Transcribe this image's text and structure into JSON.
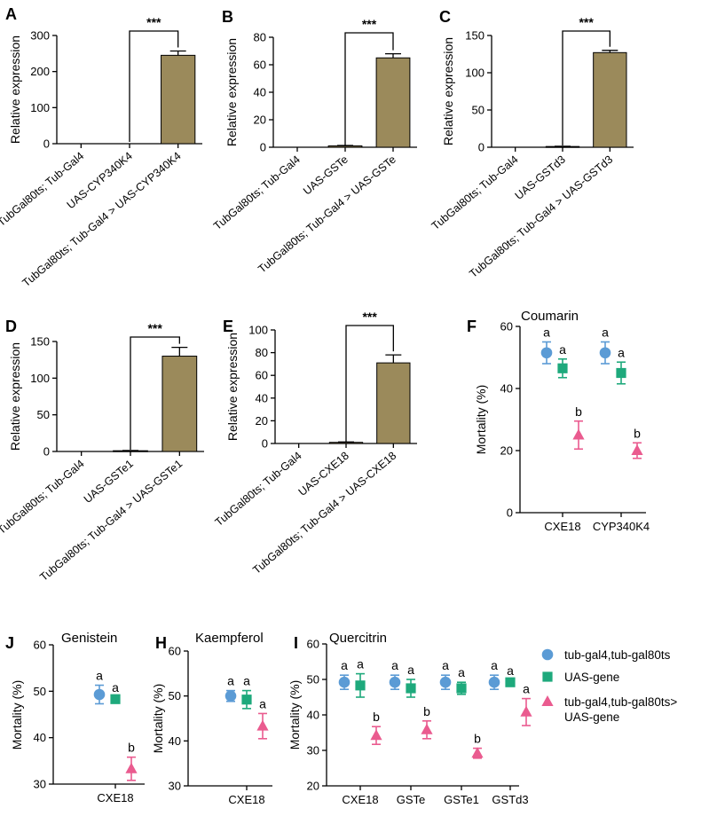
{
  "colors": {
    "bar": "#9b8a5b",
    "blue": "#5b9bd5",
    "green": "#1ea97c",
    "pink": "#ea5b8f"
  },
  "legend": {
    "entries": [
      "tub-gal4,tub-gal80ts",
      "UAS-gene",
      "tub-gal4,tub-gal80ts>",
      "UAS-gene"
    ]
  },
  "chart_data": [
    {
      "id": "A",
      "panel_label": "A",
      "type": "bar",
      "ylabel": "Relative expression",
      "ylim": [
        0,
        300
      ],
      "yticks": [
        0,
        100,
        200,
        300
      ],
      "categories": [
        "TubGal80ts; Tub-Gal4",
        "UAS-CYP340K4",
        "TubGal80ts; Tub-Gal4 > UAS-CYP340K4"
      ],
      "values": [
        0,
        0,
        245
      ],
      "errors": [
        0,
        0,
        12
      ],
      "significance": "***"
    },
    {
      "id": "B",
      "panel_label": "B",
      "type": "bar",
      "ylabel": "Relative expression",
      "ylim": [
        0,
        80
      ],
      "yticks": [
        0,
        20,
        40,
        60,
        80
      ],
      "categories": [
        "TubGal80ts; Tub-Gal4",
        "UAS-GSTe",
        "TubGal80ts; Tub-Gal4 > UAS-GSTe"
      ],
      "values": [
        0,
        1,
        65
      ],
      "errors": [
        0,
        0.3,
        3
      ],
      "significance": "***"
    },
    {
      "id": "C",
      "panel_label": "C",
      "type": "bar",
      "ylabel": "Relative expression",
      "ylim": [
        0,
        150
      ],
      "yticks": [
        0,
        50,
        100,
        150
      ],
      "categories": [
        "TubGal80ts; Tub-Gal4",
        "UAS-GSTd3",
        "TubGal80ts; Tub-Gal4 > UAS-GSTd3"
      ],
      "values": [
        0,
        1,
        127
      ],
      "errors": [
        0,
        0.3,
        3
      ],
      "significance": "***"
    },
    {
      "id": "D",
      "panel_label": "D",
      "type": "bar",
      "ylabel": "Relative expression",
      "ylim": [
        0,
        150
      ],
      "yticks": [
        0,
        50,
        100,
        150
      ],
      "categories": [
        "TubGal80ts; Tub-Gal4",
        "UAS-GSTe1",
        "TubGal80ts; Tub-Gal4 > UAS-GSTe1"
      ],
      "values": [
        0,
        1,
        130
      ],
      "errors": [
        0,
        0.3,
        12
      ],
      "significance": "***"
    },
    {
      "id": "E",
      "panel_label": "E",
      "type": "bar",
      "ylabel": "Relative expression",
      "ylim": [
        0,
        100
      ],
      "yticks": [
        0,
        20,
        40,
        60,
        80,
        100
      ],
      "categories": [
        "TubGal80ts; Tub-Gal4",
        "UAS-CXE18",
        "TubGal80ts; Tub-Gal4 > UAS-CXE18"
      ],
      "values": [
        0,
        1,
        71
      ],
      "errors": [
        0,
        0.3,
        7
      ],
      "significance": "***"
    },
    {
      "id": "F",
      "panel_label": "F",
      "type": "scatter",
      "title": "Coumarin",
      "ylabel": "Mortality (%)",
      "ylim": [
        0,
        60
      ],
      "yticks": [
        0,
        20,
        40,
        60
      ],
      "categories": [
        "CXE18",
        "CYP340K4"
      ],
      "series": [
        {
          "values": [
            51.5,
            51.5
          ],
          "errors": [
            3.5,
            3.5
          ],
          "letters": [
            "a",
            "a"
          ]
        },
        {
          "values": [
            46.5,
            45
          ],
          "errors": [
            3,
            3.5
          ],
          "letters": [
            "a",
            "a"
          ]
        },
        {
          "values": [
            25,
            20
          ],
          "errors": [
            4.5,
            2.5
          ],
          "letters": [
            "b",
            "b"
          ]
        }
      ]
    },
    {
      "id": "J",
      "panel_label": "J",
      "type": "scatter",
      "title": "Genistein",
      "ylabel": "Mortality (%)",
      "ylim": [
        30,
        60
      ],
      "yticks": [
        30,
        40,
        50,
        60
      ],
      "categories": [
        "CXE18"
      ],
      "series": [
        {
          "values": [
            49.3
          ],
          "errors": [
            2
          ],
          "letters": [
            "a"
          ]
        },
        {
          "values": [
            48.3
          ],
          "errors": [
            0.4
          ],
          "letters": [
            "a"
          ]
        },
        {
          "values": [
            33.3
          ],
          "errors": [
            2.5
          ],
          "letters": [
            "b"
          ]
        }
      ]
    },
    {
      "id": "H",
      "panel_label": "H",
      "type": "scatter",
      "title": "Kaempferol",
      "ylabel": "Mortality (%)",
      "ylim": [
        30,
        60
      ],
      "yticks": [
        30,
        40,
        50,
        60
      ],
      "categories": [
        "CXE18"
      ],
      "series": [
        {
          "values": [
            50
          ],
          "errors": [
            1.2
          ],
          "letters": [
            "a"
          ]
        },
        {
          "values": [
            49.2
          ],
          "errors": [
            2
          ],
          "letters": [
            "a"
          ]
        },
        {
          "values": [
            43.3
          ],
          "errors": [
            2.8
          ],
          "letters": [
            "a"
          ]
        }
      ]
    },
    {
      "id": "I",
      "panel_label": "I",
      "type": "scatter",
      "title": "Quercitrin",
      "ylabel": "Mortality (%)",
      "ylim": [
        20,
        60
      ],
      "yticks": [
        20,
        30,
        40,
        50,
        60
      ],
      "categories": [
        "CXE18",
        "GSTe",
        "GSTe1",
        "GSTd3"
      ],
      "series": [
        {
          "values": [
            49.2,
            49.2,
            49.2,
            49.2
          ],
          "errors": [
            2,
            2,
            2,
            2
          ],
          "letters": [
            "a",
            "a",
            "a",
            "a"
          ]
        },
        {
          "values": [
            48.3,
            47.5,
            47.5,
            49.2
          ],
          "errors": [
            3.3,
            2.5,
            1.7,
            0.6
          ],
          "letters": [
            "a",
            "a",
            "a",
            "a"
          ]
        },
        {
          "values": [
            34.2,
            35.8,
            29.2,
            40.8
          ],
          "errors": [
            2.5,
            2.5,
            1.4,
            3.8
          ],
          "letters": [
            "b",
            "b",
            "b",
            "a"
          ]
        }
      ]
    }
  ]
}
